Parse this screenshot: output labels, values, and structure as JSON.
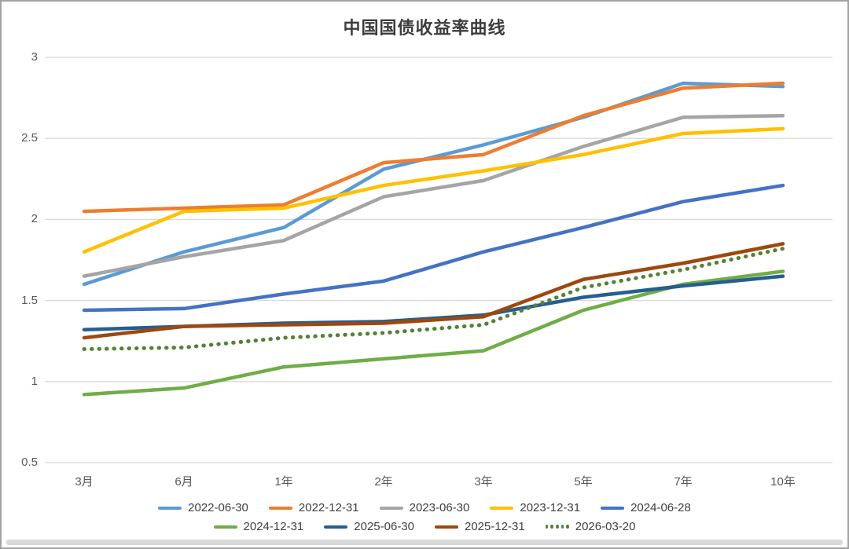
{
  "title": "中国国债收益率曲线",
  "chart_data": {
    "type": "line",
    "title": "中国国债收益率曲线",
    "xlabel": "",
    "ylabel": "",
    "categories": [
      "3月",
      "6月",
      "1年",
      "2年",
      "3年",
      "5年",
      "7年",
      "10年"
    ],
    "y_ticks": [
      "3",
      "2.5",
      "2",
      "1.5",
      "1",
      "0.5"
    ],
    "ylim": [
      0.5,
      3
    ],
    "grid": "horizontal",
    "gridline_color": "#D9D9D9",
    "legend_position": "bottom",
    "axis_label_color": "#595959",
    "series": [
      {
        "name": "2022-06-30",
        "color": "#5B9BD5",
        "style": "solid",
        "values": [
          1.6,
          1.8,
          1.95,
          2.31,
          2.46,
          2.63,
          2.84,
          2.82
        ]
      },
      {
        "name": "2022-12-31",
        "color": "#ED7D31",
        "style": "solid",
        "values": [
          2.05,
          2.07,
          2.09,
          2.35,
          2.4,
          2.64,
          2.81,
          2.84
        ]
      },
      {
        "name": "2023-06-30",
        "color": "#A5A5A5",
        "style": "solid",
        "values": [
          1.65,
          1.77,
          1.87,
          2.14,
          2.24,
          2.45,
          2.63,
          2.64
        ]
      },
      {
        "name": "2023-12-31",
        "color": "#FFC000",
        "style": "solid",
        "values": [
          1.8,
          2.05,
          2.07,
          2.21,
          2.3,
          2.4,
          2.53,
          2.56
        ]
      },
      {
        "name": "2024-06-28",
        "color": "#4472C4",
        "style": "solid",
        "values": [
          1.44,
          1.45,
          1.54,
          1.62,
          1.8,
          1.95,
          2.11,
          2.21
        ]
      },
      {
        "name": "2024-12-31",
        "color": "#70AD47",
        "style": "solid",
        "values": [
          0.92,
          0.96,
          1.09,
          1.14,
          1.19,
          1.44,
          1.6,
          1.68
        ]
      },
      {
        "name": "2025-06-30",
        "color": "#255E91",
        "style": "solid",
        "values": [
          1.32,
          1.34,
          1.36,
          1.37,
          1.41,
          1.52,
          1.59,
          1.65
        ]
      },
      {
        "name": "2025-12-31",
        "color": "#9E480E",
        "style": "solid",
        "values": [
          1.27,
          1.34,
          1.35,
          1.36,
          1.4,
          1.63,
          1.73,
          1.85
        ]
      },
      {
        "name": "2026-03-20",
        "color": "#548235",
        "style": "dotted",
        "values": [
          1.2,
          1.21,
          1.27,
          1.3,
          1.35,
          1.58,
          1.69,
          1.82
        ]
      }
    ]
  }
}
